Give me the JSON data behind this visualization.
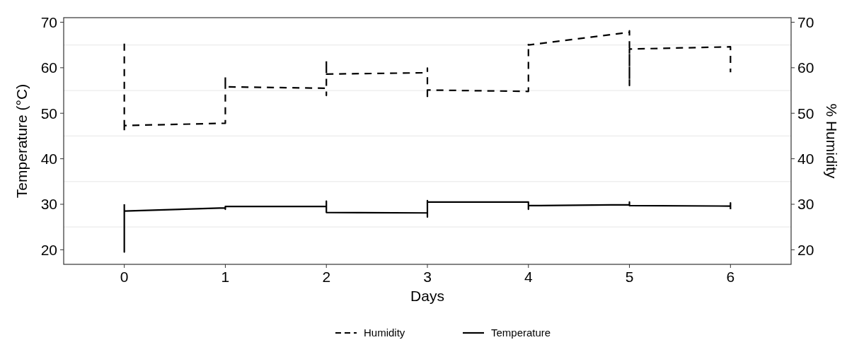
{
  "chart_data": {
    "type": "line",
    "xlabel": "Days",
    "ylabel": "Temperature (°C)",
    "y2label": "% Humidity",
    "xlim": [
      -0.6,
      6.6
    ],
    "xticks": [
      0,
      1,
      2,
      3,
      4,
      5,
      6
    ],
    "ylim": [
      16.8,
      71
    ],
    "yticks": [
      20,
      {
        "value": 25,
        "label": null
      },
      30,
      {
        "value": 35,
        "label": null
      },
      40,
      {
        "value": 45,
        "label": null
      },
      50,
      {
        "value": 55,
        "label": null
      },
      60,
      {
        "value": 65,
        "label": null
      },
      70
    ],
    "y2lim": [
      16.8,
      71
    ],
    "y2ticks": [
      20,
      30,
      40,
      50,
      60,
      70
    ],
    "grid": "y",
    "legend": "bottom",
    "series": [
      {
        "name": "Humidity",
        "color": "#000000",
        "line_style": "dashed",
        "x": [
          0,
          0,
          0,
          1,
          1,
          1,
          2,
          2,
          2,
          2,
          3,
          3,
          3,
          3,
          4,
          4,
          4,
          5,
          5,
          5,
          5,
          6,
          6
        ],
        "values": [
          65.3,
          46.0,
          47.3,
          47.8,
          58.0,
          55.8,
          55.5,
          53.9,
          61.5,
          58.6,
          58.9,
          59.9,
          53.3,
          55.1,
          54.8,
          65.3,
          65.0,
          67.8,
          68.1,
          56.1,
          64.1,
          64.6,
          59.0
        ]
      },
      {
        "name": "Temperature",
        "color": "#000000",
        "line_style": "solid",
        "x": [
          0,
          0,
          0,
          1,
          1,
          1,
          2,
          2,
          2,
          3,
          3,
          3,
          3,
          4,
          4,
          4,
          5,
          5,
          5,
          6,
          6,
          6
        ],
        "values": [
          30.0,
          19.5,
          28.5,
          29.2,
          28.9,
          29.5,
          29.5,
          30.7,
          28.2,
          28.1,
          27.2,
          30.8,
          30.5,
          30.5,
          28.9,
          29.7,
          29.9,
          30.5,
          29.7,
          29.6,
          30.3,
          28.9
        ]
      }
    ]
  }
}
